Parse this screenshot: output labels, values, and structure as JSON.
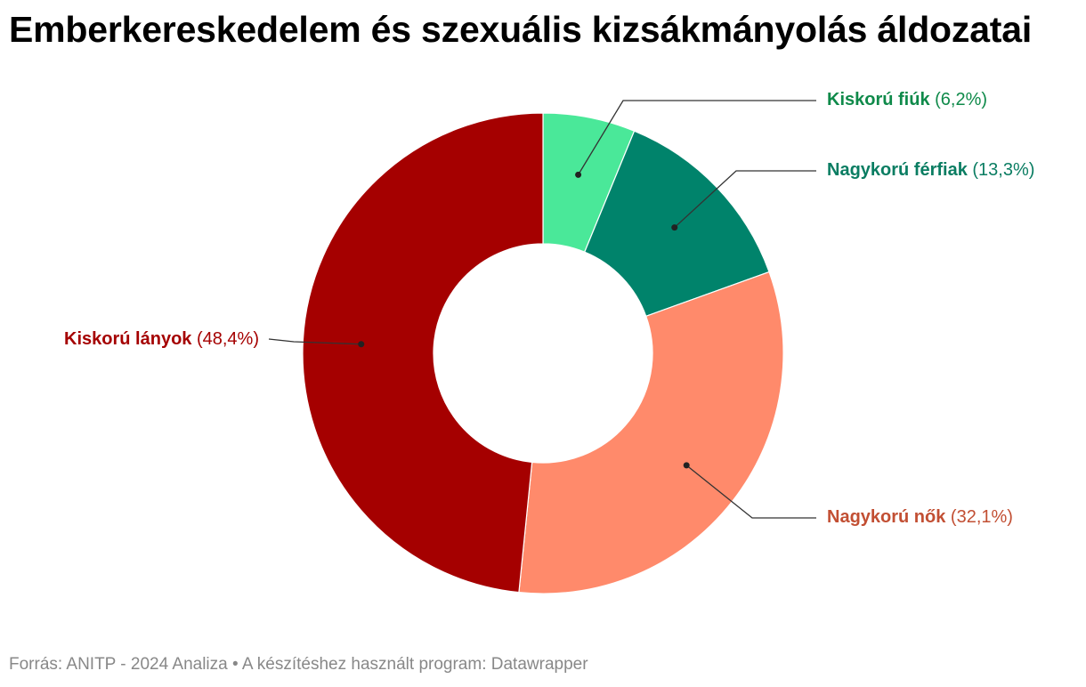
{
  "title": "Emberkereskedelem és szexuális kizsákmányolás áldozatai",
  "footer": {
    "source_prefix": "Forrás: ",
    "source": "ANITP - 2024 Analiza",
    "separator": " • ",
    "tool_prefix": "A készítéshez használt program: ",
    "tool": "Datawrapper"
  },
  "chart_data": {
    "type": "pie",
    "variant": "donut",
    "slices": [
      {
        "label": "Kiskorú fiúk",
        "value": 6.2,
        "value_label": "(6,2%)",
        "color": "#4ae899",
        "label_color": "#0f8a4a"
      },
      {
        "label": "Nagykorú férfiak",
        "value": 13.3,
        "value_label": "(13,3%)",
        "color": "#00836b",
        "label_color": "#0a7d62"
      },
      {
        "label": "Nagykorú nők",
        "value": 32.1,
        "value_label": "(32,1%)",
        "color": "#ff8a6b",
        "label_color": "#c24f33"
      },
      {
        "label": "Kiskorú lányok",
        "value": 48.4,
        "value_label": "(48,4%)",
        "color": "#a50000",
        "label_color": "#a50000"
      }
    ]
  }
}
